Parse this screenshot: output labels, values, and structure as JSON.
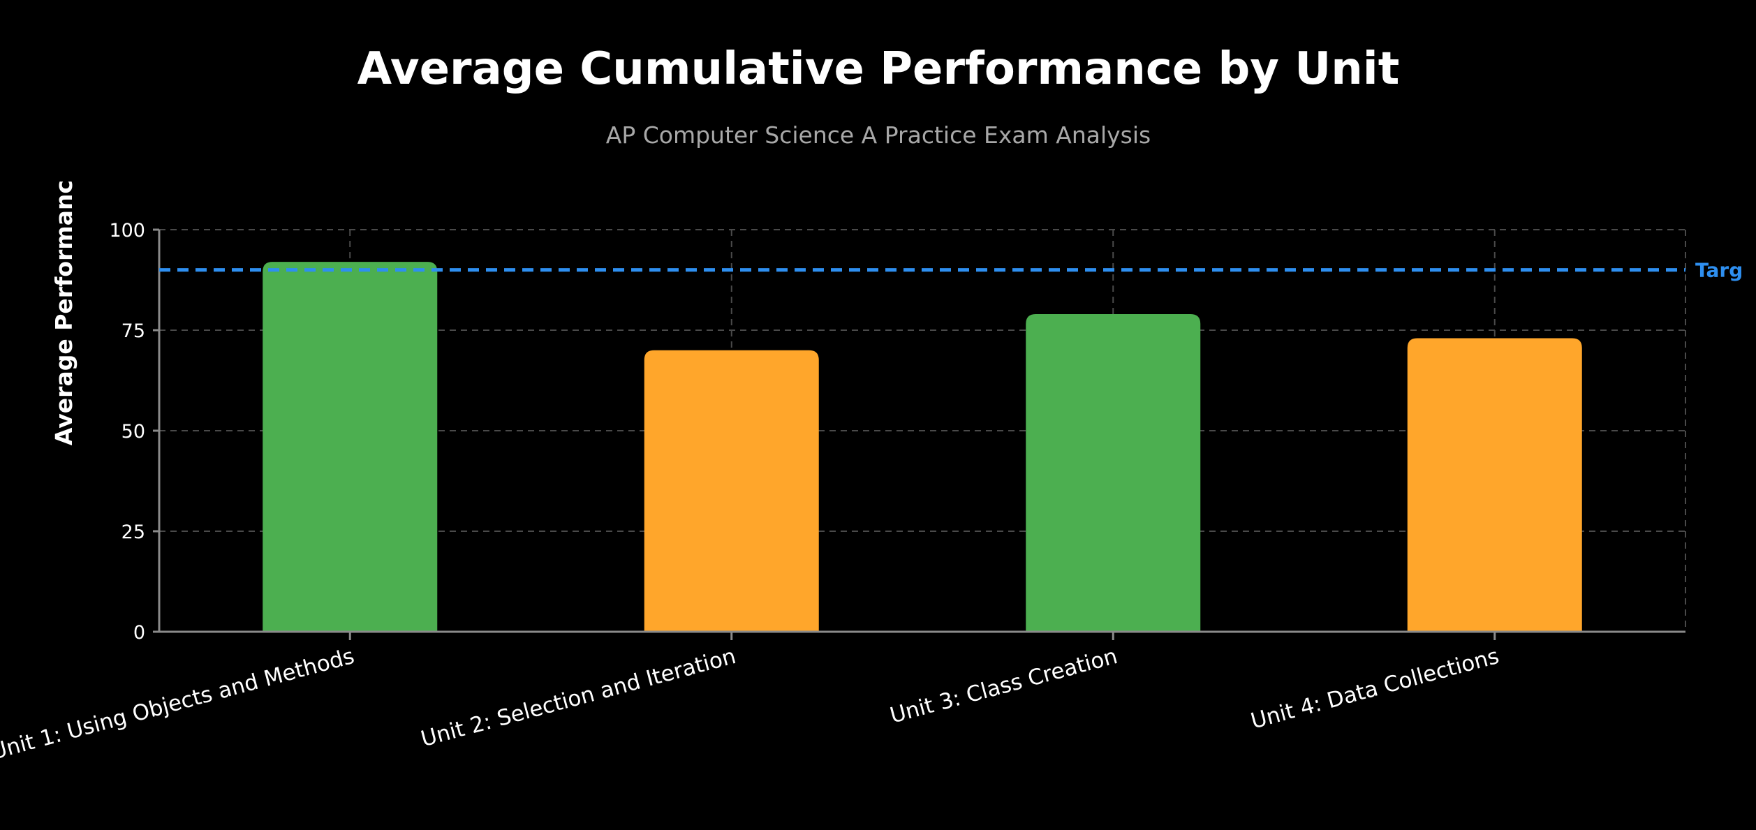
{
  "chart_data": {
    "type": "bar",
    "title": "Average Cumulative Performance by Unit",
    "subtitle": "AP Computer Science A Practice Exam Analysis",
    "ylabel": "Average Performanc",
    "xlabel": "",
    "ylim": [
      0,
      100
    ],
    "yticks": [
      0,
      25,
      50,
      75,
      100
    ],
    "grid": true,
    "categories": [
      "Unit 1: Using Objects and Methods",
      "Unit 2: Selection and Iteration",
      "Unit 3: Class Creation",
      "Unit 4: Data Collections"
    ],
    "values": [
      92,
      70,
      79,
      73
    ],
    "bar_colors": [
      "#4caf50",
      "#ffa62b",
      "#4caf50",
      "#ffa62b"
    ],
    "target": {
      "value": 90,
      "label": "Targ",
      "color": "#2e8ff0"
    }
  }
}
